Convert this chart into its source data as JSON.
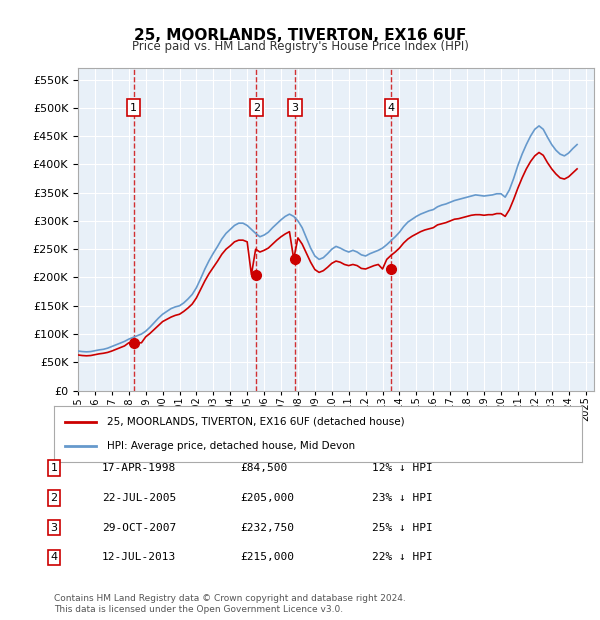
{
  "title": "25, MOORLANDS, TIVERTON, EX16 6UF",
  "subtitle": "Price paid vs. HM Land Registry's House Price Index (HPI)",
  "ylabel_ticks": [
    "£0",
    "£50K",
    "£100K",
    "£150K",
    "£200K",
    "£250K",
    "£300K",
    "£350K",
    "£400K",
    "£450K",
    "£500K",
    "£550K"
  ],
  "ytick_values": [
    0,
    50000,
    100000,
    150000,
    200000,
    250000,
    300000,
    350000,
    400000,
    450000,
    500000,
    550000
  ],
  "ylim": [
    0,
    570000
  ],
  "xlim_start": 1995.0,
  "xlim_end": 2025.5,
  "background_color": "#e8f0f8",
  "plot_bg_color": "#e8f0f8",
  "grid_color": "#ffffff",
  "red_line_color": "#cc0000",
  "blue_line_color": "#6699cc",
  "sale_points": [
    {
      "num": 1,
      "date_str": "17-APR-1998",
      "date_x": 1998.29,
      "price": 84500,
      "vline_x": 1998.29
    },
    {
      "num": 2,
      "date_str": "22-JUL-2005",
      "date_x": 2005.55,
      "price": 205000,
      "vline_x": 2005.55
    },
    {
      "num": 3,
      "date_str": "29-OCT-2007",
      "date_x": 2007.83,
      "price": 232750,
      "vline_x": 2007.83
    },
    {
      "num": 4,
      "date_str": "12-JUL-2013",
      "date_x": 2013.53,
      "price": 215000,
      "vline_x": 2013.53
    }
  ],
  "table_data": [
    {
      "num": 1,
      "date": "17-APR-1998",
      "price": "£84,500",
      "hpi": "12% ↓ HPI"
    },
    {
      "num": 2,
      "date": "22-JUL-2005",
      "price": "£205,000",
      "hpi": "23% ↓ HPI"
    },
    {
      "num": 3,
      "date": "29-OCT-2007",
      "price": "£232,750",
      "hpi": "25% ↓ HPI"
    },
    {
      "num": 4,
      "date": "12-JUL-2013",
      "price": "£215,000",
      "hpi": "22% ↓ HPI"
    }
  ],
  "legend_red_label": "25, MOORLANDS, TIVERTON, EX16 6UF (detached house)",
  "legend_blue_label": "HPI: Average price, detached house, Mid Devon",
  "footer": "Contains HM Land Registry data © Crown copyright and database right 2024.\nThis data is licensed under the Open Government Licence v3.0.",
  "hpi_data": {
    "years": [
      1995.0,
      1995.25,
      1995.5,
      1995.75,
      1996.0,
      1996.25,
      1996.5,
      1996.75,
      1997.0,
      1997.25,
      1997.5,
      1997.75,
      1998.0,
      1998.25,
      1998.5,
      1998.75,
      1999.0,
      1999.25,
      1999.5,
      1999.75,
      2000.0,
      2000.25,
      2000.5,
      2000.75,
      2001.0,
      2001.25,
      2001.5,
      2001.75,
      2002.0,
      2002.25,
      2002.5,
      2002.75,
      2003.0,
      2003.25,
      2003.5,
      2003.75,
      2004.0,
      2004.25,
      2004.5,
      2004.75,
      2005.0,
      2005.25,
      2005.5,
      2005.75,
      2006.0,
      2006.25,
      2006.5,
      2006.75,
      2007.0,
      2007.25,
      2007.5,
      2007.75,
      2008.0,
      2008.25,
      2008.5,
      2008.75,
      2009.0,
      2009.25,
      2009.5,
      2009.75,
      2010.0,
      2010.25,
      2010.5,
      2010.75,
      2011.0,
      2011.25,
      2011.5,
      2011.75,
      2012.0,
      2012.25,
      2012.5,
      2012.75,
      2013.0,
      2013.25,
      2013.5,
      2013.75,
      2014.0,
      2014.25,
      2014.5,
      2014.75,
      2015.0,
      2015.25,
      2015.5,
      2015.75,
      2016.0,
      2016.25,
      2016.5,
      2016.75,
      2017.0,
      2017.25,
      2017.5,
      2017.75,
      2018.0,
      2018.25,
      2018.5,
      2018.75,
      2019.0,
      2019.25,
      2019.5,
      2019.75,
      2020.0,
      2020.25,
      2020.5,
      2020.75,
      2021.0,
      2021.25,
      2021.5,
      2021.75,
      2022.0,
      2022.25,
      2022.5,
      2022.75,
      2023.0,
      2023.25,
      2023.5,
      2023.75,
      2024.0,
      2024.25,
      2024.5
    ],
    "values": [
      70000,
      69000,
      68500,
      69000,
      70500,
      72000,
      73000,
      75000,
      78000,
      81000,
      84000,
      87000,
      91000,
      94000,
      97000,
      100000,
      105000,
      112000,
      120000,
      128000,
      135000,
      140000,
      145000,
      148000,
      150000,
      155000,
      162000,
      170000,
      182000,
      198000,
      215000,
      230000,
      243000,
      255000,
      268000,
      278000,
      285000,
      292000,
      296000,
      296000,
      292000,
      285000,
      278000,
      272000,
      275000,
      280000,
      288000,
      295000,
      302000,
      308000,
      312000,
      308000,
      300000,
      288000,
      270000,
      252000,
      238000,
      232000,
      235000,
      242000,
      250000,
      255000,
      252000,
      248000,
      245000,
      248000,
      245000,
      240000,
      238000,
      242000,
      245000,
      248000,
      252000,
      258000,
      265000,
      272000,
      280000,
      290000,
      298000,
      303000,
      308000,
      312000,
      315000,
      318000,
      320000,
      325000,
      328000,
      330000,
      333000,
      336000,
      338000,
      340000,
      342000,
      344000,
      346000,
      345000,
      344000,
      345000,
      346000,
      348000,
      348000,
      342000,
      355000,
      375000,
      398000,
      418000,
      435000,
      450000,
      462000,
      468000,
      462000,
      448000,
      435000,
      425000,
      418000,
      415000,
      420000,
      428000,
      435000
    ]
  },
  "red_line_data": {
    "years": [
      1995.0,
      1995.25,
      1995.5,
      1995.75,
      1996.0,
      1996.25,
      1996.5,
      1996.75,
      1997.0,
      1997.25,
      1997.5,
      1997.75,
      1998.0,
      1998.25,
      1998.5,
      1998.75,
      1999.0,
      1999.25,
      1999.5,
      1999.75,
      2000.0,
      2000.25,
      2000.5,
      2000.75,
      2001.0,
      2001.25,
      2001.5,
      2001.75,
      2002.0,
      2002.25,
      2002.5,
      2002.75,
      2003.0,
      2003.25,
      2003.5,
      2003.75,
      2004.0,
      2004.25,
      2004.5,
      2004.75,
      2005.0,
      2005.25,
      2005.5,
      2005.75,
      2006.0,
      2006.25,
      2006.5,
      2006.75,
      2007.0,
      2007.25,
      2007.5,
      2007.75,
      2008.0,
      2008.25,
      2008.5,
      2008.75,
      2009.0,
      2009.25,
      2009.5,
      2009.75,
      2010.0,
      2010.25,
      2010.5,
      2010.75,
      2011.0,
      2011.25,
      2011.5,
      2011.75,
      2012.0,
      2012.25,
      2012.5,
      2012.75,
      2013.0,
      2013.25,
      2013.5,
      2013.75,
      2014.0,
      2014.25,
      2014.5,
      2014.75,
      2015.0,
      2015.25,
      2015.5,
      2015.75,
      2016.0,
      2016.25,
      2016.5,
      2016.75,
      2017.0,
      2017.25,
      2017.5,
      2017.75,
      2018.0,
      2018.25,
      2018.5,
      2018.75,
      2019.0,
      2019.25,
      2019.5,
      2019.75,
      2020.0,
      2020.25,
      2020.5,
      2020.75,
      2021.0,
      2021.25,
      2021.5,
      2021.75,
      2022.0,
      2022.25,
      2022.5,
      2022.75,
      2023.0,
      2023.25,
      2023.5,
      2023.75,
      2024.0,
      2024.25,
      2024.5
    ],
    "values": [
      63000,
      62000,
      61500,
      62000,
      63500,
      65000,
      66000,
      67500,
      70000,
      73000,
      76000,
      79000,
      84500,
      84500,
      84500,
      84500,
      95000,
      101000,
      108000,
      115000,
      122000,
      126000,
      130000,
      133000,
      135000,
      140000,
      146000,
      153000,
      164000,
      179000,
      194000,
      207000,
      218000,
      229000,
      241000,
      250000,
      256000,
      263000,
      266000,
      266000,
      263000,
      205000,
      250000,
      245000,
      248000,
      252000,
      259000,
      266000,
      272000,
      277000,
      281000,
      232750,
      270000,
      259000,
      243000,
      227000,
      214000,
      209000,
      212000,
      218000,
      225000,
      229000,
      227000,
      223000,
      221000,
      223000,
      221000,
      216000,
      215000,
      218000,
      221000,
      223000,
      215000,
      232000,
      239000,
      245000,
      252000,
      261000,
      268000,
      273000,
      277000,
      281000,
      284000,
      286000,
      288000,
      293000,
      295000,
      297000,
      300000,
      303000,
      304000,
      306000,
      308000,
      310000,
      311000,
      311000,
      310000,
      311000,
      311000,
      313000,
      313000,
      308000,
      320000,
      338000,
      358000,
      376000,
      392000,
      405000,
      415000,
      421000,
      416000,
      403000,
      392000,
      383000,
      376000,
      374000,
      378000,
      385000,
      392000
    ]
  }
}
